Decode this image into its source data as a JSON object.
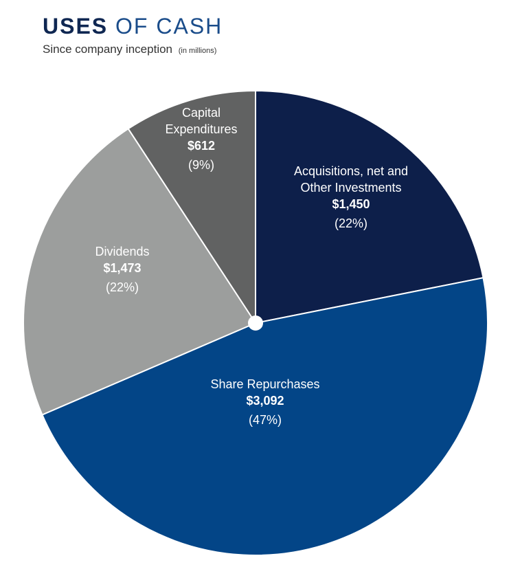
{
  "header": {
    "title_bold": "USES",
    "title_light": "OF CASH",
    "subtitle": "Since company inception",
    "unit_note": "(in millions)"
  },
  "chart_data": {
    "type": "pie",
    "title": "USES OF CASH",
    "subtitle": "Since company inception (in millions)",
    "slices": [
      {
        "name": "Acquisitions, net and Other Investments",
        "label_lines": [
          "Acquisitions, net and",
          "Other Investments"
        ],
        "value": 1450,
        "value_label": "$1,450",
        "percent_label": "(22%)",
        "color": "#0d1f4a"
      },
      {
        "name": "Share Repurchases",
        "label_lines": [
          "Share Repurchases"
        ],
        "value": 3092,
        "value_label": "$3,092",
        "percent_label": "(47%)",
        "color": "#034587"
      },
      {
        "name": "Dividends",
        "label_lines": [
          "Dividends"
        ],
        "value": 1473,
        "value_label": "$1,473",
        "percent_label": "(22%)",
        "color": "#9c9e9d"
      },
      {
        "name": "Capital Expenditures",
        "label_lines": [
          "Capital",
          "Expenditures"
        ],
        "value": 612,
        "value_label": "$612",
        "percent_label": "(9%)",
        "color": "#616262"
      }
    ],
    "start": "12 o'clock",
    "direction": "clockwise",
    "center_dot": true
  }
}
